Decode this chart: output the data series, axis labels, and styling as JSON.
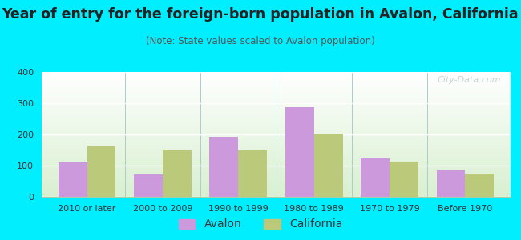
{
  "title": "Year of entry for the foreign-born population in Avalon, California",
  "subtitle": "(Note: State values scaled to Avalon population)",
  "categories": [
    "2010 or later",
    "2000 to 2009",
    "1990 to 1999",
    "1980 to 1989",
    "1970 to 1979",
    "Before 1970"
  ],
  "avalon_values": [
    110,
    72,
    193,
    288,
    123,
    85
  ],
  "california_values": [
    165,
    152,
    150,
    202,
    113,
    75
  ],
  "avalon_color": "#cc99dd",
  "california_color": "#bbc97a",
  "background_outer": "#00eeff",
  "ylim": [
    0,
    400
  ],
  "yticks": [
    0,
    100,
    200,
    300,
    400
  ],
  "title_fontsize": 12.5,
  "subtitle_fontsize": 8.5,
  "legend_fontsize": 10,
  "bar_width": 0.38,
  "watermark_text": "City-Data.com"
}
